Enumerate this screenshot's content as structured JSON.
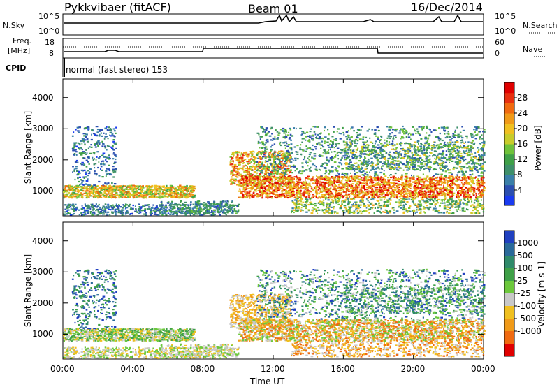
{
  "header": {
    "station": "Pykkvibaer (fitACF)",
    "beam": "Beam 01",
    "date": "16/Dec/2014"
  },
  "strip_labels": {
    "nsky": "N.Sky",
    "nsearch": "N.Search",
    "freq_line1": "Freq.",
    "freq_line2": "[MHz]",
    "nave": "Nave",
    "cpid": "CPID",
    "cpid_text": "normal (fast stereo) 153",
    "noise_ticks_left": [
      "10^5",
      "10^0"
    ],
    "noise_ticks_right": [
      "10^5",
      "10^0"
    ],
    "freq_ticks": [
      "18",
      "8"
    ],
    "nave_ticks": [
      "60",
      "0"
    ]
  },
  "colors": {
    "trace": "#000000",
    "ground_scatter": "#c8c8c8"
  },
  "chart_data": [
    {
      "type": "heatmap",
      "panel": "power",
      "ylabel": "Slant Range [km]",
      "xlabel": "",
      "yticks": [
        "1000",
        "2000",
        "3000",
        "4000"
      ],
      "ylim": [
        200,
        4600
      ],
      "xlim": [
        0,
        24
      ],
      "colorbar": {
        "label": "Power [dB]",
        "ticks": [
          "4",
          "8",
          "12",
          "16",
          "20",
          "24",
          "28"
        ],
        "range": [
          0,
          32
        ],
        "colors": [
          "#1a3bf0",
          "#2b4fb0",
          "#3a7fa8",
          "#3e8f6a",
          "#3fa048",
          "#6fc23a",
          "#c8cc2a",
          "#f0c020",
          "#f09a18",
          "#f06a10",
          "#e83010",
          "#e00000"
        ]
      }
    },
    {
      "type": "heatmap",
      "panel": "velocity",
      "ylabel": "Slant Range [km]",
      "xlabel": "Time UT",
      "xticks": [
        "00:00",
        "04:00",
        "08:00",
        "12:00",
        "16:00",
        "20:00",
        "00:00"
      ],
      "yticks": [
        "1000",
        "2000",
        "3000",
        "4000"
      ],
      "ylim": [
        200,
        4600
      ],
      "xlim": [
        0,
        24
      ],
      "colorbar": {
        "label": "Velocity [m s-1]",
        "ticks": [
          "1000",
          "500",
          "100",
          "25",
          "-25",
          "-100",
          "-500",
          "-1000"
        ],
        "colors": [
          "#2040c0",
          "#2a6a9a",
          "#2f8a6a",
          "#3fa048",
          "#6cc83c",
          "#c8c8c8",
          "#f0c020",
          "#f09a18",
          "#f06a10",
          "#e00000"
        ]
      }
    }
  ]
}
